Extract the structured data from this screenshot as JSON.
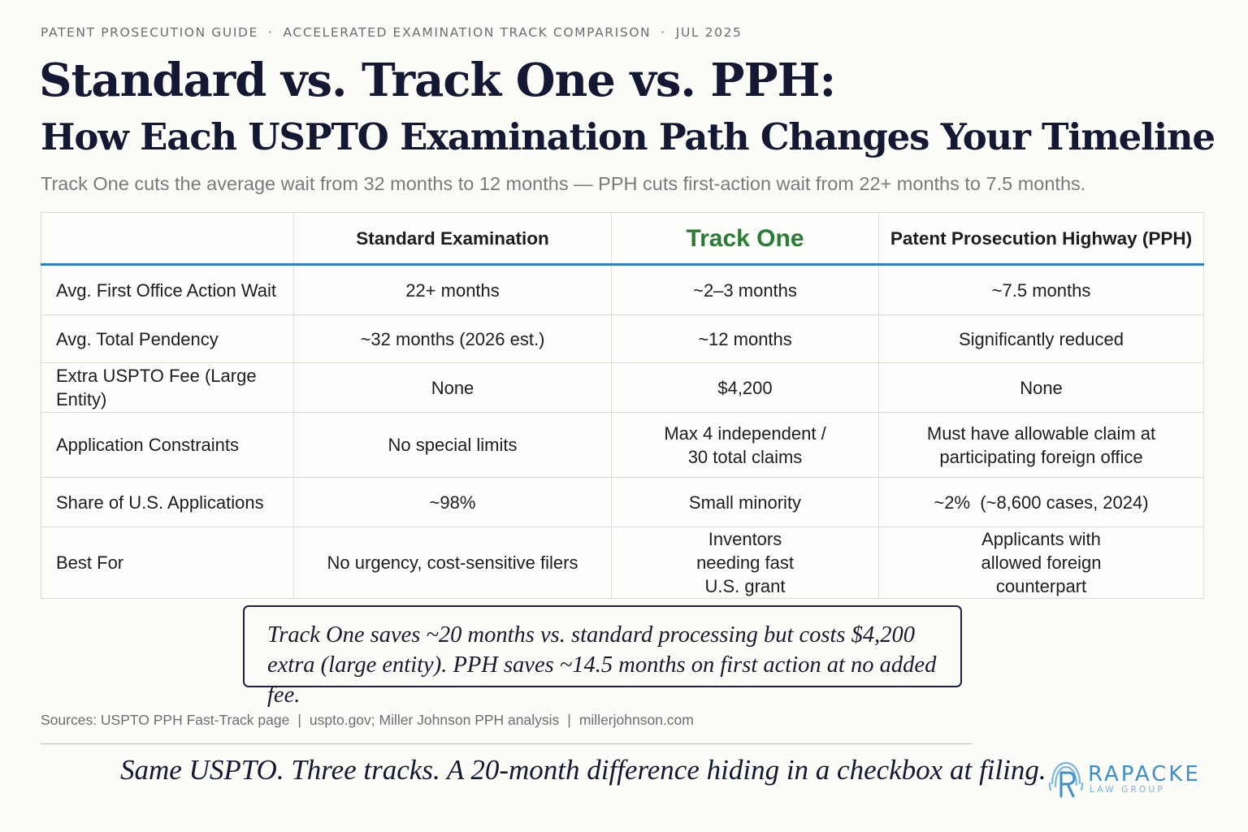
{
  "header": {
    "eyebrow_1": "PATENT PROSECUTION GUIDE",
    "eyebrow_sep": "·",
    "eyebrow_2": "ACCELERATED EXAMINATION TRACK COMPARISON",
    "eyebrow_3": "JUL 2025",
    "title_line1": "Standard vs. Track One vs. PPH:",
    "title_line2": "How Each USPTO Examination Path Changes Your Timeline",
    "subtitle": "Track One cuts the average wait from 32 months to 12 months — PPH cuts first-action wait from 22+ months to 7.5 months."
  },
  "table": {
    "columns": [
      "",
      "Standard Examination",
      "Track One",
      "Patent Prosecution Highway (PPH)"
    ],
    "rows": [
      {
        "label": "Avg. First Office Action Wait",
        "standard": "22+ months",
        "track_one": "~2–3 months",
        "pph": "~7.5 months"
      },
      {
        "label": "Avg. Total Pendency",
        "standard": "~32 months (2026 est.)",
        "track_one": "~12 months",
        "pph": "Significantly reduced"
      },
      {
        "label": "Extra USPTO Fee (Large Entity)",
        "standard": "None",
        "track_one": "$4,200",
        "pph": "None"
      },
      {
        "label": "Application Constraints",
        "standard": "No special limits",
        "track_one": "Max 4 independent / 30 total claims",
        "pph": "Must have allowable claim at participating foreign office"
      },
      {
        "label": "Share of U.S. Applications",
        "standard": "~98%",
        "track_one": "Small minority",
        "pph": "~2%  (~8,600 cases, 2024)"
      },
      {
        "label": "Best For",
        "standard": "No urgency, cost-sensitive filers",
        "track_one": "Inventors needing fast U.S. grant",
        "pph": "Applicants with allowed foreign counterpart"
      }
    ]
  },
  "callout": "Track One saves ~20 months vs. standard processing but costs $4,200 extra (large entity). PPH saves ~14.5 months on first action at no added fee.",
  "sources": {
    "s1": "Sources: USPTO PPH Fast-Track page",
    "s2": "uspto.gov; Miller Johnson PPH analysis",
    "s3": "millerjohnson.com",
    "sep": "|"
  },
  "tagline": "Same USPTO.  Three tracks.  A 20-month difference hiding in a checkbox at filing.",
  "logo": {
    "name": "RAPACKE",
    "sub": "LAW GROUP",
    "icon": "fingerprint-r-icon"
  },
  "colors": {
    "accent_blue": "#2f7fc3",
    "track_one_green": "#2b7d35",
    "navy": "#141833",
    "logo_blue": "#3d8fc6"
  }
}
